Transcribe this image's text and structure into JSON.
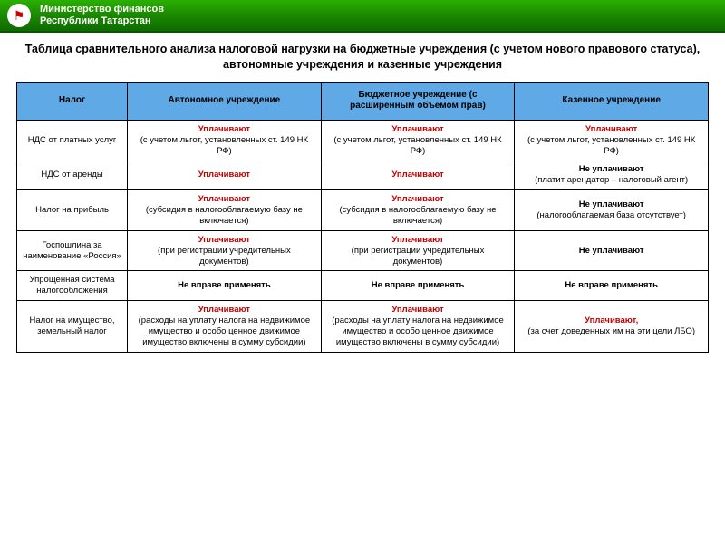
{
  "header": {
    "ministry_line1": "Министерство финансов",
    "ministry_line2": "Республики Татарстан"
  },
  "title": "Таблица сравнительного анализа налоговой нагрузки на бюджетные учреждения (с учетом нового правового статуса), автономные учреждения и казенные учреждения",
  "columns": {
    "c1": "Налог",
    "c2": "Автономное учреждение",
    "c3": "Бюджетное учреждение (с расширенным объемом прав)",
    "c4": "Казенное учреждение"
  },
  "rows": [
    {
      "tax": "НДС от платных услуг",
      "auto": {
        "status": "Уплачивают",
        "note": "(с учетом льгот, установленных ст. 149 НК РФ)",
        "pay": true
      },
      "budg": {
        "status": "Уплачивают",
        "note": "(с учетом льгот, установленных ст. 149 НК РФ)",
        "pay": true
      },
      "kaz": {
        "status": "Уплачивают",
        "note": "(с учетом льгот, установленных ст. 149 НК РФ)",
        "pay": true
      }
    },
    {
      "tax": "НДС от аренды",
      "auto": {
        "status": "Уплачивают",
        "note": "",
        "pay": true
      },
      "budg": {
        "status": "Уплачивают",
        "note": "",
        "pay": true
      },
      "kaz": {
        "status": "Не уплачивают",
        "note": "(платит арендатор – налоговый агент)",
        "pay": false
      }
    },
    {
      "tax": "Налог на прибыль",
      "auto": {
        "status": "Уплачивают",
        "note": "(субсидия в налогооблагаемую базу не включается)",
        "pay": true
      },
      "budg": {
        "status": "Уплачивают",
        "note": "(субсидия в налогооблагаемую базу не включается)",
        "pay": true
      },
      "kaz": {
        "status": "Не уплачивают",
        "note": "(налогооблагаемая база отсутствует)",
        "pay": false
      }
    },
    {
      "tax": "Госпошлина за наименование «Россия»",
      "auto": {
        "status": "Уплачивают",
        "note": "(при регистрации учредительных документов)",
        "pay": true
      },
      "budg": {
        "status": "Уплачивают",
        "note": "(при регистрации учредительных документов)",
        "pay": true
      },
      "kaz": {
        "status": "Не уплачивают",
        "note": "",
        "pay": false
      }
    },
    {
      "tax": "Упрощенная система налогообложения",
      "auto": {
        "status": "Не вправе применять",
        "note": "",
        "pay": false
      },
      "budg": {
        "status": "Не вправе применять",
        "note": "",
        "pay": false
      },
      "kaz": {
        "status": "Не вправе применять",
        "note": "",
        "pay": false
      }
    },
    {
      "tax": "Налог на имущество, земельный налог",
      "auto": {
        "status": "Уплачивают",
        "note": "(расходы на уплату налога на недвижимое имущество и особо ценное движимое имущество включены в сумму субсидии)",
        "pay": true
      },
      "budg": {
        "status": "Уплачивают",
        "note": "(расходы на уплату налога на недвижимое имущество и особо ценное движимое имущество включены в сумму субсидии)",
        "pay": true
      },
      "kaz": {
        "status": "Уплачивают,",
        "note": "(за счет доведенных им на эти цели ЛБО)",
        "pay": true
      }
    }
  ],
  "style": {
    "header_bg": "#5ea9e6",
    "pay_color": "#c00000",
    "border_color": "#000000",
    "topbar_gradient": [
      "#2bb000",
      "#1a8800",
      "#0f6b00"
    ],
    "title_fontsize": 12.5,
    "cell_fontsize": 9.5
  }
}
